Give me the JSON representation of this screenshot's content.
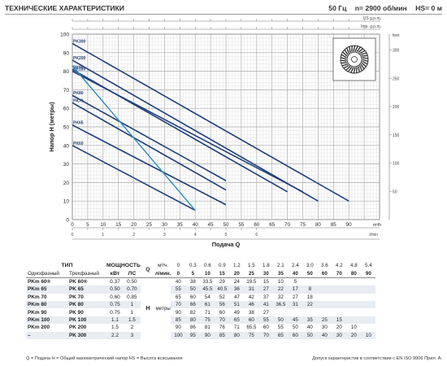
{
  "header": {
    "title": "ТЕХНИЧЕСКИЕ ХАРАКТЕРИСТИКИ",
    "freq": "50 Гц",
    "speed": "n= 2900 об/мин",
    "hs": "HS= 0 м"
  },
  "chart_data": {
    "type": "line",
    "title": "",
    "xlabel": "Подача Q",
    "ylabel": "Напор H (метры)",
    "xlim": [
      0,
      100
    ],
    "ylim": [
      0,
      100
    ],
    "grid": true,
    "x_ticks": [
      0,
      5,
      10,
      15,
      20,
      25,
      30,
      35,
      40,
      45,
      50,
      55,
      60,
      65,
      70,
      75,
      80,
      85,
      90,
      95,
      100
    ],
    "x_tick_labels": [
      "0",
      "5",
      "10",
      "15",
      "20",
      "25",
      "30",
      "35",
      "40",
      "45",
      "50",
      "55",
      "60",
      "65",
      "70",
      "75",
      "80",
      "85",
      "90",
      "",
      "m³/h"
    ],
    "y_ticks": [
      0,
      10,
      20,
      30,
      40,
      50,
      60,
      70,
      80,
      90,
      100
    ],
    "x2_label": "l/min",
    "x2_ticks": [
      0,
      0.5,
      1,
      1.5,
      2,
      2.5,
      3,
      3.5,
      4,
      4.5,
      5,
      5.5,
      6
    ],
    "x2_tick_labels": [
      "0",
      "",
      "1",
      "",
      "2",
      "",
      "3",
      "",
      "4",
      "",
      "5",
      "",
      "6"
    ],
    "x3_label": "US g.p.m.",
    "x4_label": "Imp. g.p.m.",
    "y2_label": "feet",
    "y2_ticks": [
      50,
      100,
      150,
      200,
      250,
      300
    ],
    "series": [
      {
        "name": "PK300",
        "color": "#1f3f7c",
        "x": [
          0,
          90
        ],
        "y": [
          95,
          10
        ]
      },
      {
        "name": "PK200",
        "color": "#1f3f7c",
        "x": [
          0,
          80
        ],
        "y": [
          86,
          10
        ]
      },
      {
        "name": "PK90",
        "color": "#1f3f7c",
        "x": [
          0,
          70
        ],
        "y": [
          81,
          15
        ]
      },
      {
        "name": "PK100",
        "color": "#1f3f7c",
        "x": [
          0,
          75
        ],
        "y": [
          80,
          15
        ]
      },
      {
        "name": "PK80",
        "color": "#1f3f7c",
        "x": [
          0,
          50
        ],
        "y": [
          67,
          21
        ]
      },
      {
        "name": "PK70",
        "color": "#1f3f7c",
        "x": [
          0,
          50
        ],
        "y": [
          63,
          16
        ]
      },
      {
        "name": "PK65",
        "color": "#1f3f7c",
        "x": [
          0,
          50
        ],
        "y": [
          51,
          8
        ]
      },
      {
        "name": "PK60",
        "color": "#1f3f7c",
        "x": [
          0,
          40
        ],
        "y": [
          40,
          5
        ]
      },
      {
        "name": "",
        "color": "#2b8fbf",
        "x": [
          0,
          40
        ],
        "y": [
          83,
          5
        ]
      }
    ]
  },
  "axes": {
    "units_top": "US g.p.m.",
    "units_top2": "Imp. g.p.m.",
    "feet": "feet",
    "x_unit": "m³/h",
    "l_min": "l/min"
  },
  "table": {
    "head1": "ТИП",
    "head_power": "МОЩНОСТЬ",
    "head_kw": "кВт",
    "head_ls": "ЛС",
    "head_single": "Однофазный",
    "head_three": "Трехфазный",
    "q_label": "Q",
    "units_m3": "м³/ч.",
    "units_lmin": "л/мин.",
    "h_label": "H",
    "h_units": "метры",
    "q_m3": [
      "0",
      "0.3",
      "0.6",
      "0.9",
      "1.2",
      "1.5",
      "1.8",
      "2.1",
      "2.4",
      "3.0",
      "3.6",
      "4.2",
      "4.8",
      "5.4"
    ],
    "q_lmin": [
      "0",
      "5",
      "10",
      "15",
      "20",
      "25",
      "30",
      "35",
      "40",
      "50",
      "60",
      "70",
      "80",
      "90"
    ],
    "rows": [
      {
        "single": "PKm 60®",
        "three": "PK 60®",
        "kw": "0.37",
        "hp": "0.50",
        "h": [
          "40",
          "38",
          "33.5",
          "29",
          "24",
          "19.5",
          "15",
          "10",
          "5",
          "",
          "",
          "",
          "",
          ""
        ]
      },
      {
        "single": "PKm 65",
        "three": "PK 65",
        "kw": "0.50",
        "hp": "0.70",
        "h": [
          "55",
          "50",
          "45.5",
          "40.5",
          "36",
          "31",
          "27",
          "22",
          "17",
          "8",
          "",
          "",
          "",
          ""
        ]
      },
      {
        "single": "PKm 70",
        "three": "PK 70",
        "kw": "0.60",
        "hp": "0.85",
        "h": [
          "65",
          "60",
          "54",
          "52",
          "47",
          "42",
          "37",
          "32",
          "27",
          "18",
          "",
          "",
          "",
          ""
        ]
      },
      {
        "single": "PKm 80",
        "three": "PK 80",
        "kw": "0.75",
        "hp": "1",
        "h": [
          "70",
          "66",
          "61",
          "56",
          "51",
          "46",
          "41",
          "36.5",
          "31",
          "22",
          "",
          "",
          "",
          ""
        ]
      },
      {
        "single": "PKm 90",
        "three": "PK 90",
        "kw": "0.75",
        "hp": "1",
        "h": [
          "90",
          "82",
          "71",
          "60",
          "49",
          "38",
          "27",
          "",
          "",
          "",
          "",
          "",
          "",
          ""
        ]
      },
      {
        "single": "PKm 100",
        "three": "PK 100",
        "kw": "1.1",
        "hp": "1.5",
        "h": [
          "85",
          "80",
          "75",
          "70",
          "65",
          "60",
          "55",
          "50",
          "45",
          "35",
          "25",
          "15",
          "",
          ""
        ]
      },
      {
        "single": "PKm 200",
        "three": "PK 200",
        "kw": "1.5",
        "hp": "2",
        "h": [
          "90",
          "86",
          "81",
          "76",
          "71",
          "65.5",
          "60",
          "55",
          "50",
          "40",
          "30",
          "20",
          "10",
          ""
        ]
      },
      {
        "single": "–",
        "three": "PK 300",
        "kw": "2.2",
        "hp": "3",
        "h": [
          "100",
          "95",
          "90",
          "85",
          "80",
          "75",
          "70",
          "65",
          "60",
          "50",
          "40",
          "30",
          "20",
          "10"
        ]
      }
    ]
  },
  "footer": {
    "left": "Q = Подача  H = Общий манометрический напор  HS = Высота всасывания",
    "right": "Допуск характеристик в соответствии с EN ISO 9906 Прил. A."
  }
}
